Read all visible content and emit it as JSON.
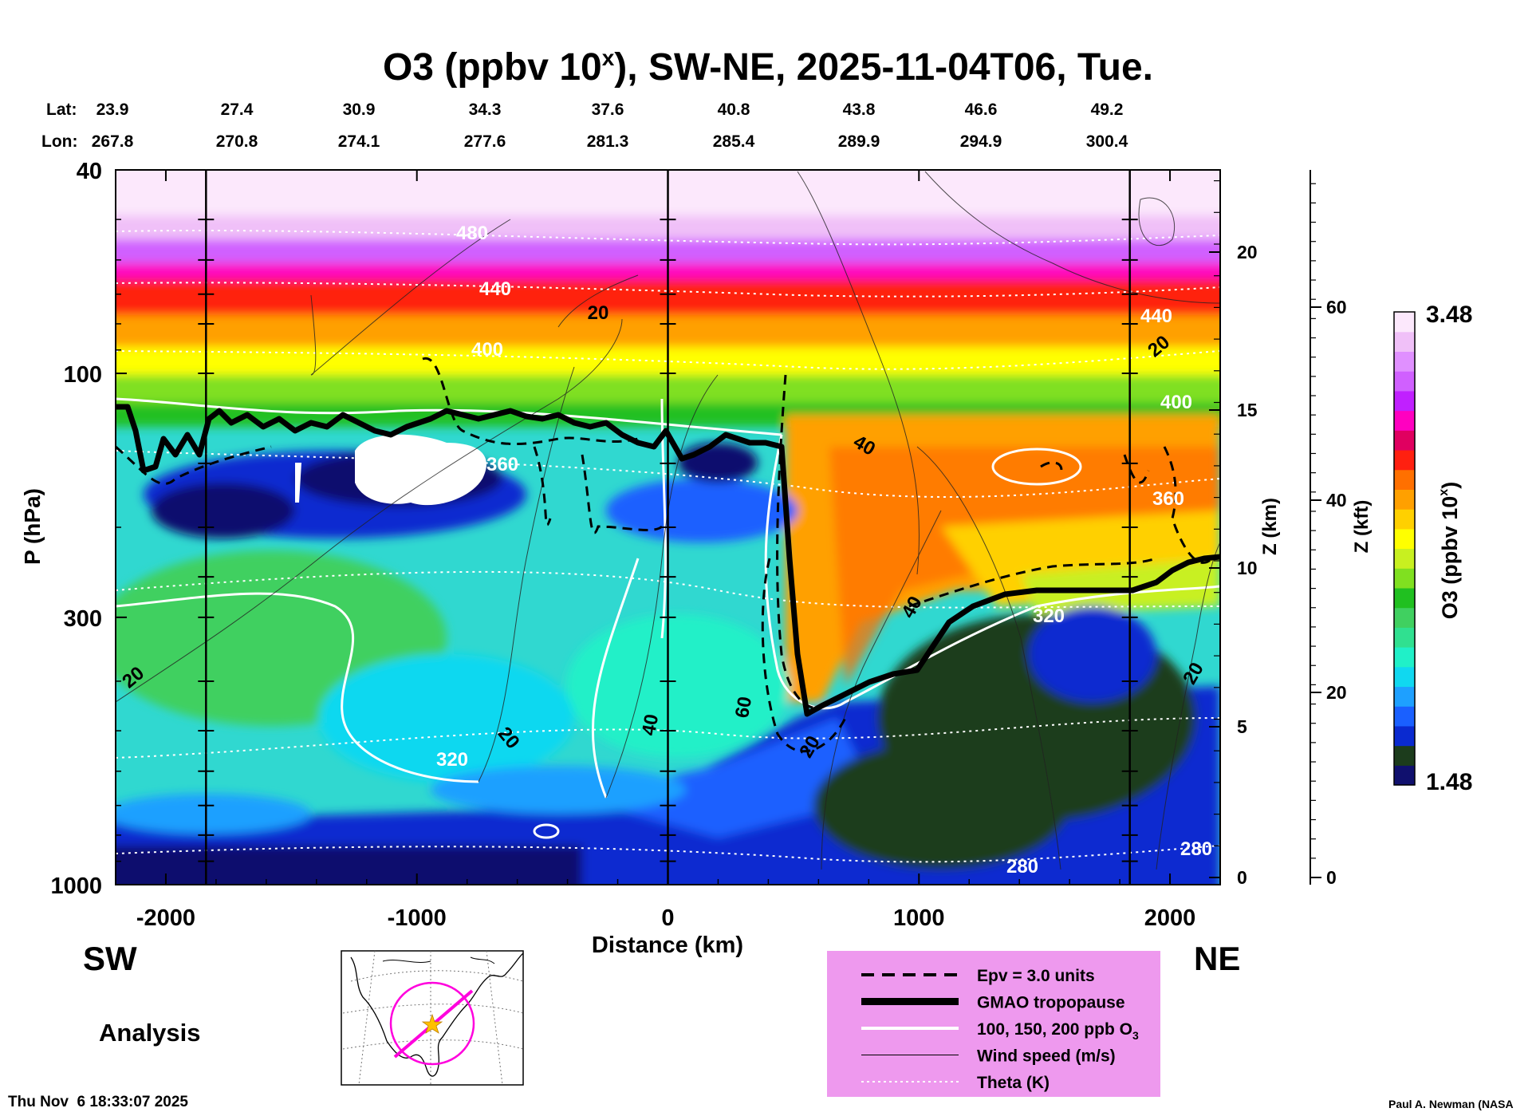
{
  "chart_data": {
    "type": "heatmap",
    "title": "O3 (ppbv 10",
    "title_sup": "x",
    "title_rest": "), SW-NE, 2025-11-04T06, Tue.",
    "xlabel": "Distance (km)",
    "ylabel": "P (hPa)",
    "xlim": [
      -2200,
      2200
    ],
    "x_ticks": [
      "-2000",
      "-1000",
      "0",
      "1000",
      "2000"
    ],
    "y_ticks": [
      "40",
      "100",
      "300",
      "1000"
    ],
    "z_km_label": "Z (km)",
    "z_km_ticks": [
      "0",
      "5",
      "10",
      "15",
      "20"
    ],
    "z_kft_label": "Z (kft)",
    "z_kft_ticks": [
      "0",
      "20",
      "40",
      "60"
    ],
    "lat_label": "Lat:",
    "lon_label": "Lon:",
    "lat": [
      "23.9",
      "27.4",
      "30.9",
      "34.3",
      "37.6",
      "40.8",
      "43.8",
      "46.6",
      "49.2"
    ],
    "lon": [
      "267.8",
      "270.8",
      "274.1",
      "277.6",
      "281.3",
      "285.4",
      "289.9",
      "294.9",
      "300.4"
    ],
    "colorbar": {
      "label": "O3 (ppbv 10",
      "label_sup": "x",
      "label_end": ")",
      "max_label": "3.48",
      "min_label": "1.48",
      "colors": [
        "#10106e",
        "#1c3c1c",
        "#0a2ad0",
        "#1a60ff",
        "#1ea0ff",
        "#10d8f0",
        "#20f0c8",
        "#30e090",
        "#40d060",
        "#20c020",
        "#80e020",
        "#c8f020",
        "#ffff00",
        "#ffd000",
        "#ffa000",
        "#ff7000",
        "#ff2010",
        "#e00060",
        "#ff00c0",
        "#c020ff",
        "#d060ff",
        "#e090ff",
        "#f0c0f8",
        "#fce8fc"
      ]
    },
    "theta_labels": [
      "480",
      "440",
      "400",
      "360",
      "320",
      "280",
      "440",
      "400",
      "360",
      "320",
      "280"
    ],
    "wind_labels": [
      "20",
      "40",
      "60",
      "40",
      "20",
      "40",
      "20",
      "20",
      "20",
      "20"
    ],
    "left_label": "SW",
    "right_label": "NE",
    "analysis_label": "Analysis",
    "legend": [
      {
        "label": "Epv = 3.0 units",
        "style": "dashed"
      },
      {
        "label": "GMAO tropopause",
        "style": "thick"
      },
      {
        "label": "100, 150, 200 ppb O",
        "sub": "3",
        "style": "white"
      },
      {
        "label": "Wind speed (m/s)",
        "style": "thin"
      },
      {
        "label": "Theta (K)",
        "style": "dotted"
      }
    ],
    "legend_bg": "#ee99ee",
    "timestamp": "Thu Nov  6 18:33:07 2025",
    "credit": "Paul A. Newman (NASA"
  }
}
